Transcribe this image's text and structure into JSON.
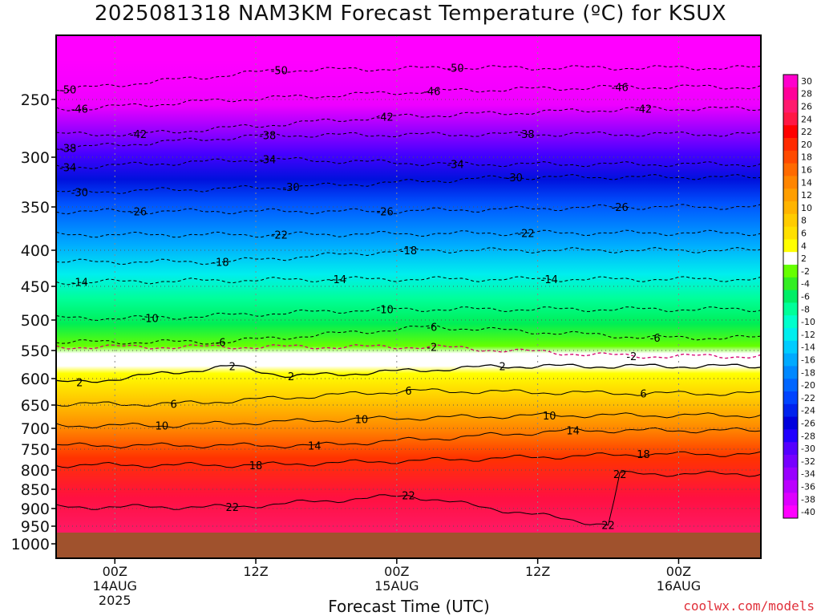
{
  "title": "2025081318 NAM3KM Forecast Temperature (ºC) for KSUX",
  "credit": "coolwx.com/models",
  "chart_data": {
    "type": "heatmap",
    "title": "2025081318 NAM3KM Forecast Temperature (ºC) for KSUX",
    "xlabel": "Forecast Time (UTC)",
    "ylabel": "",
    "x_range_hours": [
      -5,
      55
    ],
    "x_ticks": [
      {
        "hour": 0,
        "lines": [
          "00Z",
          "14AUG",
          "2025"
        ]
      },
      {
        "hour": 12,
        "lines": [
          "12Z"
        ]
      },
      {
        "hour": 24,
        "lines": [
          "00Z",
          "15AUG"
        ]
      },
      {
        "hour": 36,
        "lines": [
          "12Z"
        ]
      },
      {
        "hour": 48,
        "lines": [
          "00Z",
          "16AUG"
        ]
      }
    ],
    "y_ticks": [
      250,
      300,
      350,
      400,
      450,
      500,
      550,
      600,
      650,
      700,
      750,
      800,
      850,
      900,
      950,
      1000
    ],
    "y_range_hpa": [
      200,
      1000
    ],
    "surface_hpa": 975,
    "colorbar": {
      "labels": [
        30,
        28,
        26,
        24,
        22,
        20,
        18,
        16,
        14,
        12,
        10,
        8,
        6,
        4,
        2,
        -2,
        -4,
        -6,
        -8,
        -10,
        -12,
        -14,
        -16,
        -18,
        -20,
        -22,
        -24,
        -26,
        -28,
        -30,
        -32,
        -34,
        -36,
        -38,
        -40
      ],
      "colors": [
        "#ff00cc",
        "#ff0099",
        "#ff1a6e",
        "#ff1744",
        "#ff0000",
        "#ff2a00",
        "#ff4a00",
        "#ff6a00",
        "#ff8500",
        "#ff9e00",
        "#ffb400",
        "#ffcc00",
        "#ffe000",
        "#ffff00",
        "#ffffff",
        "#66ff00",
        "#33ee22",
        "#00ee66",
        "#00ff99",
        "#00ffcc",
        "#00eeee",
        "#00ccff",
        "#00aaff",
        "#0088ff",
        "#0066ff",
        "#0044ff",
        "#0022ee",
        "#0000dd",
        "#2200ff",
        "#5500ff",
        "#7700ff",
        "#9900ff",
        "#bb00ff",
        "#dd00ff",
        "#ff00ff"
      ]
    },
    "contour_labels": [
      {
        "value": -50,
        "positions": [
          [
            -4,
            238
          ],
          [
            14,
            215
          ],
          [
            29,
            212
          ]
        ]
      },
      {
        "value": -46,
        "positions": [
          [
            -3,
            258
          ],
          [
            27,
            240
          ],
          [
            43,
            235
          ]
        ]
      },
      {
        "value": -42,
        "positions": [
          [
            2,
            280
          ],
          [
            23,
            265
          ],
          [
            45,
            258
          ]
        ]
      },
      {
        "value": -38,
        "positions": [
          [
            -4,
            292
          ],
          [
            13,
            281
          ],
          [
            35,
            280
          ]
        ]
      },
      {
        "value": -34,
        "positions": [
          [
            -4,
            310
          ],
          [
            13,
            302
          ],
          [
            29,
            307
          ]
        ]
      },
      {
        "value": -30,
        "positions": [
          [
            -3,
            335
          ],
          [
            15,
            330
          ],
          [
            34,
            320
          ]
        ]
      },
      {
        "value": -26,
        "positions": [
          [
            2,
            355
          ],
          [
            23,
            355
          ],
          [
            43,
            350
          ]
        ]
      },
      {
        "value": -22,
        "positions": [
          [
            14,
            382
          ],
          [
            35,
            380
          ]
        ]
      },
      {
        "value": -18,
        "positions": [
          [
            9,
            416
          ],
          [
            25,
            400
          ]
        ]
      },
      {
        "value": -14,
        "positions": [
          [
            -3,
            444
          ],
          [
            19,
            440
          ],
          [
            37,
            440
          ]
        ]
      },
      {
        "value": -10,
        "positions": [
          [
            3,
            497
          ],
          [
            23,
            484
          ]
        ]
      },
      {
        "value": -6,
        "positions": [
          [
            9,
            536
          ],
          [
            27,
            511
          ],
          [
            46,
            529
          ]
        ]
      },
      {
        "value": -2,
        "positions": [
          [
            27,
            544
          ],
          [
            44,
            560
          ]
        ]
      },
      {
        "value": 2,
        "positions": [
          [
            10,
            578
          ],
          [
            -3,
            607
          ],
          [
            15,
            596
          ],
          [
            33,
            578
          ]
        ]
      },
      {
        "value": 6,
        "positions": [
          [
            5,
            648
          ],
          [
            25,
            623
          ],
          [
            45,
            628
          ]
        ]
      },
      {
        "value": 10,
        "positions": [
          [
            4,
            694
          ],
          [
            21,
            680
          ],
          [
            37,
            672
          ]
        ]
      },
      {
        "value": 14,
        "positions": [
          [
            17,
            741
          ],
          [
            39,
            705
          ]
        ]
      },
      {
        "value": 18,
        "positions": [
          [
            12,
            788
          ],
          [
            45,
            762
          ]
        ]
      },
      {
        "value": 22,
        "positions": [
          [
            10,
            896
          ],
          [
            25,
            866
          ],
          [
            43,
            810
          ],
          [
            42,
            947
          ]
        ]
      }
    ]
  }
}
